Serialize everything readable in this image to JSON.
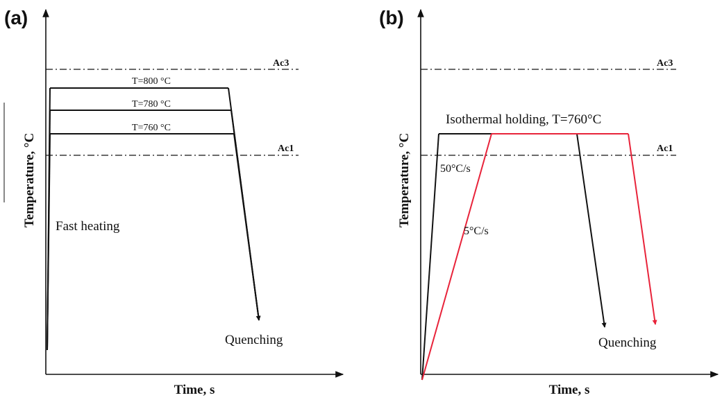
{
  "panel_a": {
    "label": "(a)",
    "y_axis_title": "Temperature, °C",
    "x_axis_title": "Time, s",
    "ac3": "Ac3",
    "ac1": "Ac1",
    "levels": [
      "T=800 °C",
      "T=780 °C",
      "T=760 °C"
    ],
    "heating_note": "Fast heating",
    "quench_note": "Quenching"
  },
  "panel_b": {
    "label": "(b)",
    "y_axis_title": "Temperature, °C",
    "x_axis_title": "Time, s",
    "ac3": "Ac3",
    "ac1": "Ac1",
    "hold_note": "Isothermal holding, T=760°C",
    "rate_fast": "50°C/s",
    "rate_slow": "5°C/s",
    "quench_note": "Quenching",
    "colors": {
      "fast_path": "#111111",
      "slow_path": "#e8233a"
    }
  }
}
